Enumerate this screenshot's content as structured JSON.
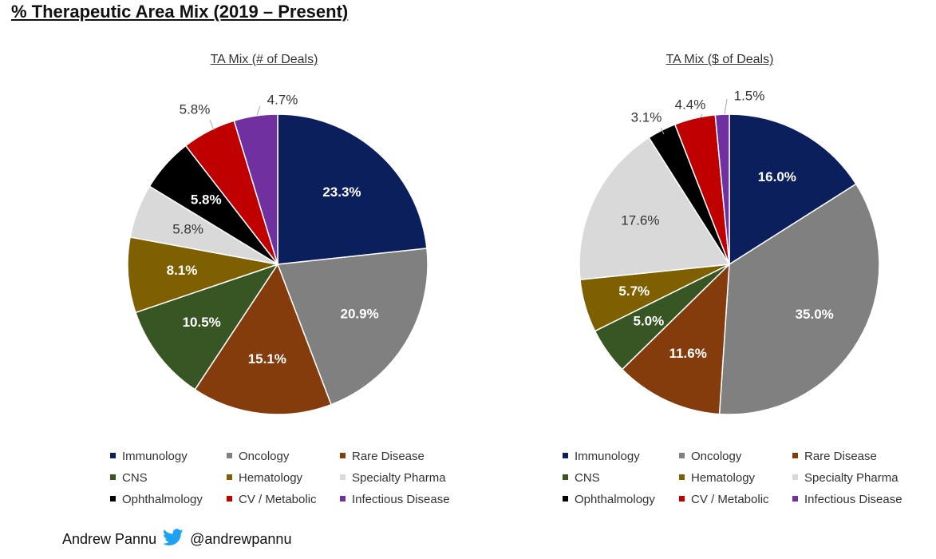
{
  "page": {
    "title": "% Therapeutic Area Mix (2019 – Present)",
    "author": "Andrew Pannu",
    "handle": "@andrewpannu",
    "twitter_icon": "twitter-bird-icon",
    "twitter_color": "#1DA1F2"
  },
  "chart_data": [
    {
      "type": "pie",
      "title": "TA Mix (# of Deals)",
      "start": "12 o'clock",
      "direction": "clockwise",
      "slices": [
        {
          "label": "Immunology",
          "value": 23.3,
          "display": "23.3%",
          "color": "#0a1f5c",
          "label_color": "#ffffff"
        },
        {
          "label": "Oncology",
          "value": 20.9,
          "display": "20.9%",
          "color": "#808080",
          "label_color": "#ffffff"
        },
        {
          "label": "Rare Disease",
          "value": 15.1,
          "display": "15.1%",
          "color": "#843c0c",
          "label_color": "#ffffff"
        },
        {
          "label": "CNS",
          "value": 10.5,
          "display": "10.5%",
          "color": "#375623",
          "label_color": "#ffffff"
        },
        {
          "label": "Hematology",
          "value": 8.1,
          "display": "8.1%",
          "color": "#7f6000",
          "label_color": "#ffffff"
        },
        {
          "label": "Specialty Pharma",
          "value": 5.8,
          "display": "5.8%",
          "color": "#d9d9d9",
          "label_color": "#333333"
        },
        {
          "label": "Ophthalmology",
          "value": 5.8,
          "display": "5.8%",
          "color": "#000000",
          "label_color": "#ffffff"
        },
        {
          "label": "CV / Metabolic",
          "value": 5.8,
          "display": "5.8%",
          "color": "#c00000",
          "label_color": "#333333",
          "outside": true
        },
        {
          "label": "Infectious Disease",
          "value": 4.7,
          "display": "4.7%",
          "color": "#7030a0",
          "label_color": "#333333",
          "outside": true
        }
      ],
      "legend": [
        "Immunology",
        "Oncology",
        "Rare Disease",
        "CNS",
        "Hematology",
        "Specialty Pharma",
        "Ophthalmology",
        "CV / Metabolic",
        "Infectious Disease"
      ]
    },
    {
      "type": "pie",
      "title": "TA Mix ($ of Deals)",
      "start": "12 o'clock",
      "direction": "clockwise",
      "slices": [
        {
          "label": "Immunology",
          "value": 16.0,
          "display": "16.0%",
          "color": "#0a1f5c",
          "label_color": "#ffffff"
        },
        {
          "label": "Oncology",
          "value": 35.0,
          "display": "35.0%",
          "color": "#808080",
          "label_color": "#ffffff"
        },
        {
          "label": "Rare Disease",
          "value": 11.6,
          "display": "11.6%",
          "color": "#843c0c",
          "label_color": "#ffffff"
        },
        {
          "label": "CNS",
          "value": 5.0,
          "display": "5.0%",
          "color": "#375623",
          "label_color": "#ffffff"
        },
        {
          "label": "Hematology",
          "value": 5.7,
          "display": "5.7%",
          "color": "#7f6000",
          "label_color": "#ffffff"
        },
        {
          "label": "Specialty Pharma",
          "value": 17.6,
          "display": "17.6%",
          "color": "#d9d9d9",
          "label_color": "#333333"
        },
        {
          "label": "Ophthalmology",
          "value": 3.1,
          "display": "3.1%",
          "color": "#000000",
          "label_color": "#333333",
          "outside": true
        },
        {
          "label": "CV / Metabolic",
          "value": 4.4,
          "display": "4.4%",
          "color": "#c00000",
          "label_color": "#333333",
          "outside": true
        },
        {
          "label": "Infectious Disease",
          "value": 1.5,
          "display": "1.5%",
          "color": "#7030a0",
          "label_color": "#333333",
          "outside": true
        }
      ],
      "legend": [
        "Immunology",
        "Oncology",
        "Rare Disease",
        "CNS",
        "Hematology",
        "Specialty Pharma",
        "Ophthalmology",
        "CV / Metabolic",
        "Infectious Disease"
      ]
    }
  ]
}
